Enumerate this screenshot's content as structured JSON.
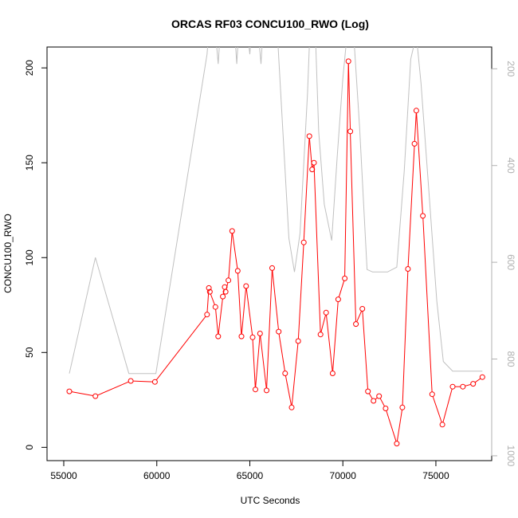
{
  "chart_data": {
    "type": "line",
    "title": "ORCAS RF03 CONCU100_RWO (Log)",
    "xlabel": "UTC Seconds",
    "ylabel": "CONCU100_RWO",
    "xlim": [
      54100,
      78000
    ],
    "ylim": [
      -7,
      211
    ],
    "y2lim": [
      1010,
      155
    ],
    "y2_reversed": true,
    "x_ticks": [
      55000,
      60000,
      65000,
      70000,
      75000
    ],
    "y_ticks": [
      0,
      50,
      100,
      150,
      200
    ],
    "y2_ticks": [
      200,
      400,
      600,
      800,
      1000
    ],
    "colors": {
      "primary": "#ff0000",
      "secondary": "#c0c0c0"
    },
    "series": [
      {
        "axis": "left",
        "style": "line-points",
        "color": "#ff0000",
        "x": [
          55300,
          56700,
          58600,
          59900,
          62700,
          62800,
          62850,
          63150,
          63300,
          63550,
          63650,
          63700,
          63850,
          64050,
          64350,
          64550,
          64800,
          65150,
          65300,
          65550,
          65900,
          66200,
          66550,
          66900,
          67250,
          67600,
          67900,
          68200,
          68350,
          68450,
          68800,
          69100,
          69450,
          69750,
          70100,
          70300,
          70400,
          70700,
          71050,
          71350,
          71650,
          71950,
          72300,
          72900,
          73200,
          73500,
          73850,
          73950,
          74300,
          74800,
          75350,
          75900,
          76450,
          77000,
          77500
        ],
        "y": [
          29.5,
          27,
          35,
          34.5,
          70,
          84,
          82,
          74,
          58.5,
          79.5,
          84.5,
          82,
          88,
          114,
          93,
          58.5,
          85,
          58,
          30.5,
          60,
          30,
          94.5,
          61,
          39,
          21,
          56,
          108,
          164,
          146.5,
          150,
          59.5,
          71,
          39,
          78,
          89,
          203.5,
          166.5,
          65,
          73,
          29.5,
          24.5,
          27,
          20.5,
          2,
          21,
          94,
          160,
          177.5,
          122,
          28,
          12,
          32,
          32,
          33.5,
          37
        ]
      },
      {
        "axis": "right",
        "style": "line",
        "color": "#c0c0c0",
        "x": [
          55300,
          56700,
          58500,
          59950,
          62700,
          62900,
          63100,
          63300,
          63500,
          63800,
          64100,
          64300,
          64500,
          64800,
          65000,
          65200,
          65400,
          65600,
          65800,
          66100,
          66500,
          67100,
          67400,
          67700,
          68100,
          68250,
          68500,
          68700,
          69000,
          69400,
          69700,
          70000,
          70300,
          70600,
          70900,
          71300,
          71600,
          72000,
          72400,
          72900,
          73300,
          73650,
          73950,
          74200,
          74600,
          75050,
          75400,
          75900,
          76500,
          77000,
          77500
        ],
        "y": [
          830,
          590,
          830,
          830,
          170,
          70,
          100,
          190,
          70,
          100,
          70,
          190,
          60,
          100,
          170,
          60,
          100,
          190,
          60,
          100,
          140,
          550,
          620,
          540,
          250,
          100,
          100,
          330,
          480,
          555,
          380,
          220,
          100,
          140,
          320,
          615,
          620,
          620,
          620,
          610,
          410,
          180,
          130,
          230,
          440,
          680,
          805,
          825,
          825,
          825,
          825
        ]
      }
    ]
  }
}
